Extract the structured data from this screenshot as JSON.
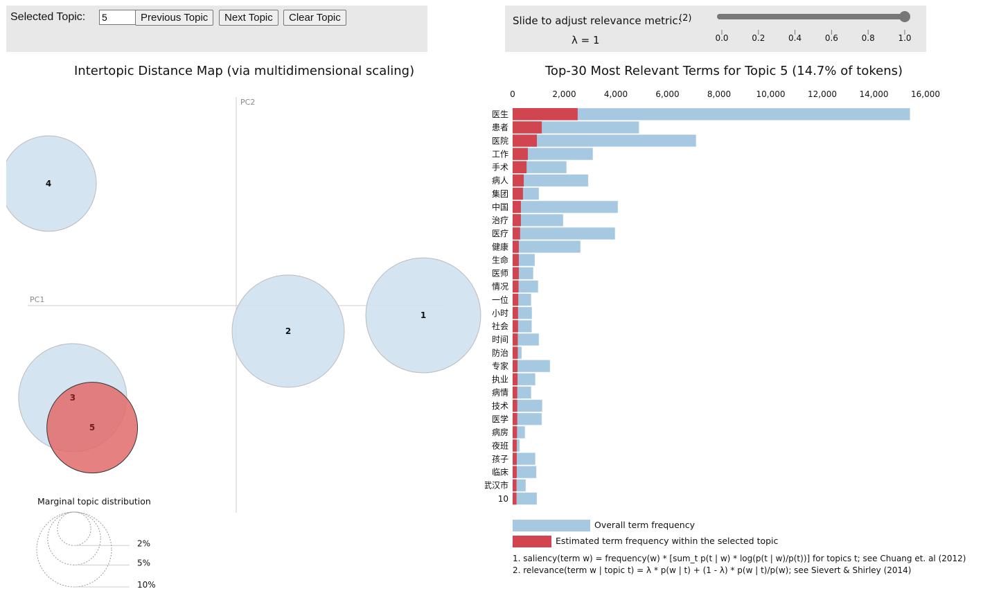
{
  "controls": {
    "selected_topic_label": "Selected Topic:",
    "selected_topic_value": "5",
    "previous_label": "Previous Topic",
    "next_label": "Next Topic",
    "clear_label": "Clear Topic"
  },
  "lambda": {
    "label": "Slide to adjust relevance metric:",
    "footnote": "(2)",
    "value_text": "λ = 1",
    "value": 1,
    "ticks": [
      "0.0",
      "0.2",
      "0.4",
      "0.6",
      "0.8",
      "1.0"
    ]
  },
  "colors": {
    "overall": "#a6c8e0",
    "topic": "#d0454f",
    "bubble": "#cfe1ee",
    "selected": "#e06b6b"
  },
  "chart_data": [
    {
      "type": "scatter",
      "title": "Intertopic Distance Map (via multidimensional scaling)",
      "xlabel": "PC1",
      "ylabel": "PC2",
      "selected_topic": 5,
      "topics": [
        {
          "label": "1",
          "pc1": 0.9,
          "pc2": -0.047,
          "percent": 23.6
        },
        {
          "label": "2",
          "pc1": 0.25,
          "pc2": -0.123,
          "percent": 22.5
        },
        {
          "label": "3",
          "pc1": -0.787,
          "pc2": -0.443,
          "percent": 20.9
        },
        {
          "label": "4",
          "pc1": -0.903,
          "pc2": 0.587,
          "percent": 16.3
        },
        {
          "label": "5",
          "pc1": -0.693,
          "pc2": -0.587,
          "percent": 14.7
        }
      ],
      "legend": {
        "title": "Marginal topic distribution",
        "items": [
          {
            "label": "2%",
            "percent": 2
          },
          {
            "label": "5%",
            "percent": 5
          },
          {
            "label": "10%",
            "percent": 10
          }
        ]
      }
    },
    {
      "type": "bar",
      "title": "Top-30 Most Relevant Terms for Topic 5 (14.7% of tokens)",
      "xlim": [
        0,
        16000
      ],
      "ticks": [
        "0",
        "2,000",
        "4,000",
        "6,000",
        "8,000",
        "10,000",
        "12,000",
        "14,000",
        "16,000"
      ],
      "tick_values": [
        0,
        2000,
        4000,
        6000,
        8000,
        10000,
        12000,
        14000,
        16000
      ],
      "categories": [
        "医生",
        "患者",
        "医院",
        "工作",
        "手术",
        "病人",
        "集团",
        "中国",
        "治疗",
        "医疗",
        "健康",
        "生命",
        "医师",
        "情况",
        "一位",
        "小时",
        "社会",
        "时间",
        "防治",
        "专家",
        "执业",
        "病情",
        "技术",
        "医学",
        "病房",
        "夜班",
        "孩子",
        "临床",
        "武汉市",
        "10"
      ],
      "series": [
        {
          "name": "Overall term frequency",
          "values": [
            15400,
            4900,
            7110,
            3110,
            2090,
            2930,
            1020,
            4080,
            1960,
            3970,
            2630,
            860,
            800,
            990,
            720,
            750,
            740,
            1020,
            350,
            1450,
            880,
            720,
            1150,
            1130,
            480,
            270,
            880,
            920,
            510,
            940
          ]
        },
        {
          "name": "Estimated term frequency within the selected topic",
          "values": [
            2520,
            1130,
            940,
            590,
            540,
            430,
            400,
            320,
            320,
            290,
            240,
            240,
            240,
            230,
            220,
            210,
            210,
            200,
            200,
            190,
            190,
            180,
            180,
            180,
            170,
            160,
            160,
            160,
            150,
            150
          ]
        }
      ],
      "notes": [
        "1. saliency(term w) = frequency(w) * [sum_t p(t | w) * log(p(t | w)/p(t))] for topics t; see Chuang et. al (2012)",
        "2. relevance(term w | topic t) = λ * p(w | t) + (1 - λ) * p(w | t)/p(w); see Sievert & Shirley (2014)"
      ]
    }
  ]
}
